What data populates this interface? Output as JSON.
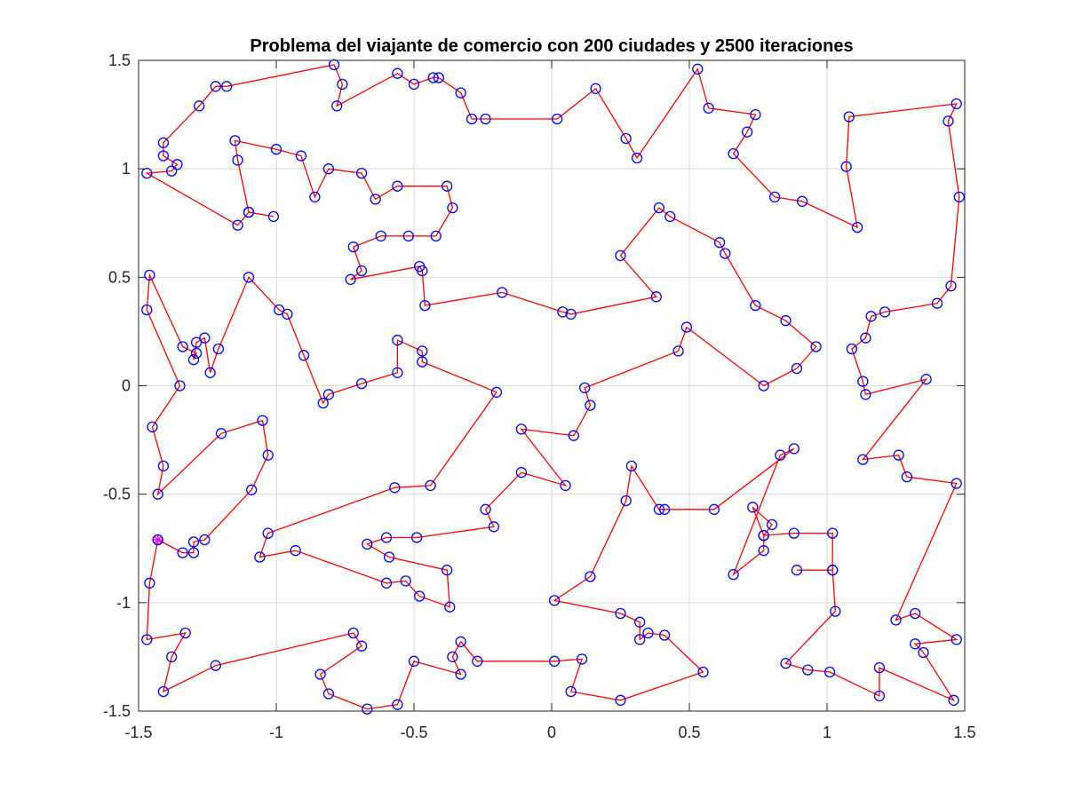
{
  "chart_data": {
    "type": "line",
    "title": "Problema del viajante de comercio con 200 ciudades y 2500 iteraciones",
    "xlabel": "",
    "ylabel": "",
    "xlim": [
      -1.5,
      1.5
    ],
    "ylim": [
      -1.5,
      1.5
    ],
    "xticks": [
      -1.5,
      -1,
      -0.5,
      0,
      0.5,
      1,
      1.5
    ],
    "xtick_labels": [
      "-1.5",
      "-1",
      "-0.5",
      "0",
      "0.5",
      "1",
      "1.5"
    ],
    "yticks": [
      -1.5,
      -1,
      -0.5,
      0,
      0.5,
      1,
      1.5
    ],
    "ytick_labels": [
      "-1.5",
      "-1",
      "-0.5",
      "0",
      "0.5",
      "1",
      "1.5"
    ],
    "grid": true,
    "colors": {
      "route": "#ff0000",
      "cities": "#0000ff",
      "start": "#ff00ff",
      "grid": "#d9d9d9",
      "axes": "#262626"
    },
    "start": [
      -1.43,
      -0.71
    ],
    "route": [
      [
        -1.43,
        -0.71
      ],
      [
        -1.46,
        -0.91
      ],
      [
        -1.47,
        -1.17
      ],
      [
        -1.33,
        -1.14
      ],
      [
        -1.38,
        -1.25
      ],
      [
        -1.41,
        -1.41
      ],
      [
        -1.22,
        -1.29
      ],
      [
        -0.72,
        -1.14
      ],
      [
        -0.69,
        -1.2
      ],
      [
        -0.84,
        -1.33
      ],
      [
        -0.81,
        -1.42
      ],
      [
        -0.67,
        -1.49
      ],
      [
        -0.56,
        -1.47
      ],
      [
        -0.5,
        -1.27
      ],
      [
        -0.33,
        -1.33
      ],
      [
        -0.36,
        -1.25
      ],
      [
        -0.33,
        -1.18
      ],
      [
        -0.27,
        -1.27
      ],
      [
        0.01,
        -1.27
      ],
      [
        0.11,
        -1.26
      ],
      [
        0.07,
        -1.41
      ],
      [
        0.25,
        -1.45
      ],
      [
        0.55,
        -1.32
      ],
      [
        0.41,
        -1.15
      ],
      [
        0.35,
        -1.14
      ],
      [
        0.32,
        -1.17
      ],
      [
        0.32,
        -1.09
      ],
      [
        0.25,
        -1.05
      ],
      [
        0.01,
        -0.99
      ],
      [
        0.14,
        -0.88
      ],
      [
        0.27,
        -0.53
      ],
      [
        0.29,
        -0.37
      ],
      [
        0.39,
        -0.57
      ],
      [
        0.41,
        -0.57
      ],
      [
        0.59,
        -0.57
      ],
      [
        0.88,
        -0.29
      ],
      [
        0.83,
        -0.32
      ],
      [
        0.66,
        -0.87
      ],
      [
        0.77,
        -0.76
      ],
      [
        0.77,
        -0.69
      ],
      [
        0.8,
        -0.64
      ],
      [
        0.73,
        -0.56
      ],
      [
        0.77,
        -0.69
      ],
      [
        0.88,
        -0.68
      ],
      [
        1.02,
        -0.68
      ],
      [
        1.02,
        -0.85
      ],
      [
        0.89,
        -0.85
      ],
      [
        1.02,
        -0.85
      ],
      [
        1.03,
        -1.04
      ],
      [
        0.85,
        -1.28
      ],
      [
        0.93,
        -1.31
      ],
      [
        1.01,
        -1.32
      ],
      [
        1.19,
        -1.43
      ],
      [
        1.19,
        -1.3
      ],
      [
        1.46,
        -1.45
      ],
      [
        1.35,
        -1.23
      ],
      [
        1.32,
        -1.19
      ],
      [
        1.47,
        -1.17
      ],
      [
        1.32,
        -1.05
      ],
      [
        1.25,
        -1.08
      ],
      [
        1.47,
        -0.45
      ],
      [
        1.29,
        -0.42
      ],
      [
        1.26,
        -0.32
      ],
      [
        1.13,
        -0.34
      ],
      [
        1.36,
        0.03
      ],
      [
        1.14,
        -0.04
      ],
      [
        1.13,
        0.02
      ],
      [
        1.09,
        0.17
      ],
      [
        1.14,
        0.22
      ],
      [
        1.16,
        0.32
      ],
      [
        1.21,
        0.34
      ],
      [
        1.4,
        0.38
      ],
      [
        1.45,
        0.46
      ],
      [
        1.48,
        0.87
      ],
      [
        1.44,
        1.22
      ],
      [
        1.47,
        1.3
      ],
      [
        1.08,
        1.24
      ],
      [
        1.07,
        1.01
      ],
      [
        1.11,
        0.73
      ],
      [
        0.91,
        0.85
      ],
      [
        0.81,
        0.87
      ],
      [
        0.66,
        1.07
      ],
      [
        0.71,
        1.17
      ],
      [
        0.74,
        1.25
      ],
      [
        0.57,
        1.28
      ],
      [
        0.53,
        1.46
      ],
      [
        0.31,
        1.05
      ],
      [
        0.27,
        1.14
      ],
      [
        0.16,
        1.37
      ],
      [
        0.02,
        1.23
      ],
      [
        -0.24,
        1.23
      ],
      [
        -0.29,
        1.23
      ],
      [
        -0.33,
        1.35
      ],
      [
        -0.41,
        1.42
      ],
      [
        -0.43,
        1.42
      ],
      [
        -0.5,
        1.39
      ],
      [
        -0.56,
        1.44
      ],
      [
        -0.78,
        1.29
      ],
      [
        -0.76,
        1.39
      ],
      [
        -0.79,
        1.48
      ],
      [
        -1.18,
        1.38
      ],
      [
        -1.22,
        1.38
      ],
      [
        -1.28,
        1.29
      ],
      [
        -1.41,
        1.12
      ],
      [
        -1.41,
        1.06
      ],
      [
        -1.36,
        1.02
      ],
      [
        -1.38,
        0.99
      ],
      [
        -1.47,
        0.98
      ],
      [
        -1.14,
        0.74
      ],
      [
        -1.1,
        0.8
      ],
      [
        -1.01,
        0.78
      ],
      [
        -1.1,
        0.8
      ],
      [
        -1.14,
        1.04
      ],
      [
        -1.15,
        1.13
      ],
      [
        -1.0,
        1.09
      ],
      [
        -0.91,
        1.06
      ],
      [
        -0.86,
        0.87
      ],
      [
        -0.81,
        1.0
      ],
      [
        -0.69,
        0.98
      ],
      [
        -0.64,
        0.86
      ],
      [
        -0.56,
        0.92
      ],
      [
        -0.38,
        0.92
      ],
      [
        -0.36,
        0.82
      ],
      [
        -0.42,
        0.69
      ],
      [
        -0.52,
        0.69
      ],
      [
        -0.62,
        0.69
      ],
      [
        -0.72,
        0.64
      ],
      [
        -0.69,
        0.53
      ],
      [
        -0.73,
        0.49
      ],
      [
        -0.48,
        0.55
      ],
      [
        -0.47,
        0.53
      ],
      [
        -0.46,
        0.37
      ],
      [
        -0.18,
        0.43
      ],
      [
        0.04,
        0.34
      ],
      [
        0.07,
        0.33
      ],
      [
        0.38,
        0.41
      ],
      [
        0.25,
        0.6
      ],
      [
        0.39,
        0.82
      ],
      [
        0.43,
        0.78
      ],
      [
        0.61,
        0.66
      ],
      [
        0.63,
        0.61
      ],
      [
        0.74,
        0.37
      ],
      [
        0.85,
        0.3
      ],
      [
        0.96,
        0.18
      ],
      [
        0.89,
        0.08
      ],
      [
        0.77,
        0.0
      ],
      [
        0.49,
        0.27
      ],
      [
        0.46,
        0.16
      ],
      [
        0.12,
        -0.01
      ],
      [
        0.14,
        -0.09
      ],
      [
        0.08,
        -0.23
      ],
      [
        -0.11,
        -0.2
      ],
      [
        0.05,
        -0.46
      ],
      [
        -0.11,
        -0.4
      ],
      [
        -0.24,
        -0.57
      ],
      [
        -0.21,
        -0.65
      ],
      [
        -0.49,
        -0.7
      ],
      [
        -0.6,
        -0.7
      ],
      [
        -0.67,
        -0.73
      ],
      [
        -0.59,
        -0.79
      ],
      [
        -0.38,
        -0.85
      ],
      [
        -0.37,
        -1.02
      ],
      [
        -0.48,
        -0.97
      ],
      [
        -0.53,
        -0.9
      ],
      [
        -0.6,
        -0.91
      ],
      [
        -0.93,
        -0.76
      ],
      [
        -1.06,
        -0.79
      ],
      [
        -1.03,
        -0.68
      ],
      [
        -0.57,
        -0.47
      ],
      [
        -0.44,
        -0.46
      ],
      [
        -0.2,
        -0.03
      ],
      [
        -0.47,
        0.11
      ],
      [
        -0.47,
        0.16
      ],
      [
        -0.56,
        0.21
      ],
      [
        -0.56,
        0.06
      ],
      [
        -0.69,
        0.01
      ],
      [
        -0.81,
        -0.04
      ],
      [
        -0.83,
        -0.08
      ],
      [
        -0.9,
        0.14
      ],
      [
        -0.96,
        0.33
      ],
      [
        -0.99,
        0.35
      ],
      [
        -1.1,
        0.5
      ],
      [
        -1.21,
        0.17
      ],
      [
        -1.24,
        0.06
      ],
      [
        -1.26,
        0.22
      ],
      [
        -1.29,
        0.2
      ],
      [
        -1.3,
        0.12
      ],
      [
        -1.29,
        0.15
      ],
      [
        -1.34,
        0.18
      ],
      [
        -1.46,
        0.51
      ],
      [
        -1.47,
        0.35
      ],
      [
        -1.35,
        0.0
      ],
      [
        -1.45,
        -0.19
      ],
      [
        -1.41,
        -0.37
      ],
      [
        -1.43,
        -0.5
      ],
      [
        -1.2,
        -0.22
      ],
      [
        -1.05,
        -0.16
      ],
      [
        -1.03,
        -0.32
      ],
      [
        -1.09,
        -0.48
      ],
      [
        -1.26,
        -0.71
      ],
      [
        -1.3,
        -0.72
      ],
      [
        -1.3,
        -0.77
      ],
      [
        -1.34,
        -0.77
      ],
      [
        -1.43,
        -0.71
      ]
    ]
  }
}
